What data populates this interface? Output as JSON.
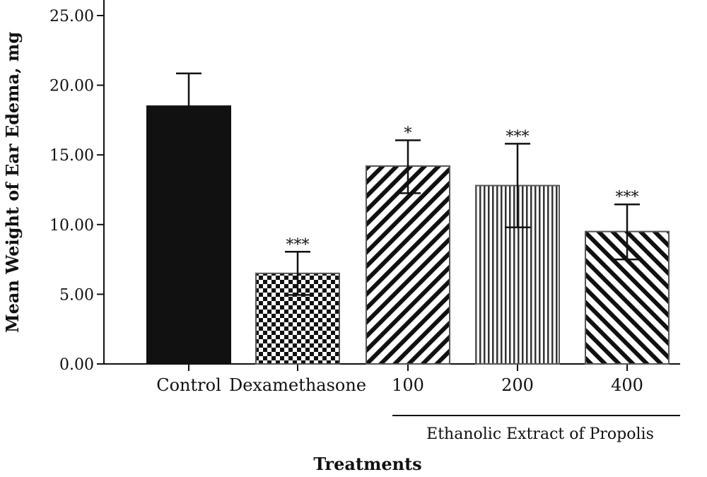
{
  "chart_data": {
    "type": "bar",
    "categories": [
      "Control",
      "Dexamethasone",
      "100",
      "200",
      "400"
    ],
    "values": [
      18.5,
      6.5,
      14.2,
      12.8,
      9.5
    ],
    "error_upper": [
      20.85,
      8.05,
      16.05,
      15.8,
      11.45
    ],
    "error_lower": [
      null,
      4.95,
      12.25,
      9.8,
      7.5
    ],
    "significance": [
      "",
      "***",
      "*",
      "***",
      "***"
    ],
    "patterns": [
      "solid",
      "checker",
      "diag-back",
      "vertical",
      "diag-fwd"
    ],
    "ylabel": "Mean Weight of Ear Edema, mg",
    "xlabel": "Treatments",
    "group_label": "Ethanolic Extract of Propolis",
    "ylim": [
      0,
      25
    ],
    "yticks": [
      "0.00",
      "5.00",
      "10.00",
      "15.00",
      "20.00",
      "25.00"
    ],
    "colors": {
      "bar_fill": "#111111",
      "bar_stroke": "#555555",
      "background": "#ffffff"
    }
  }
}
